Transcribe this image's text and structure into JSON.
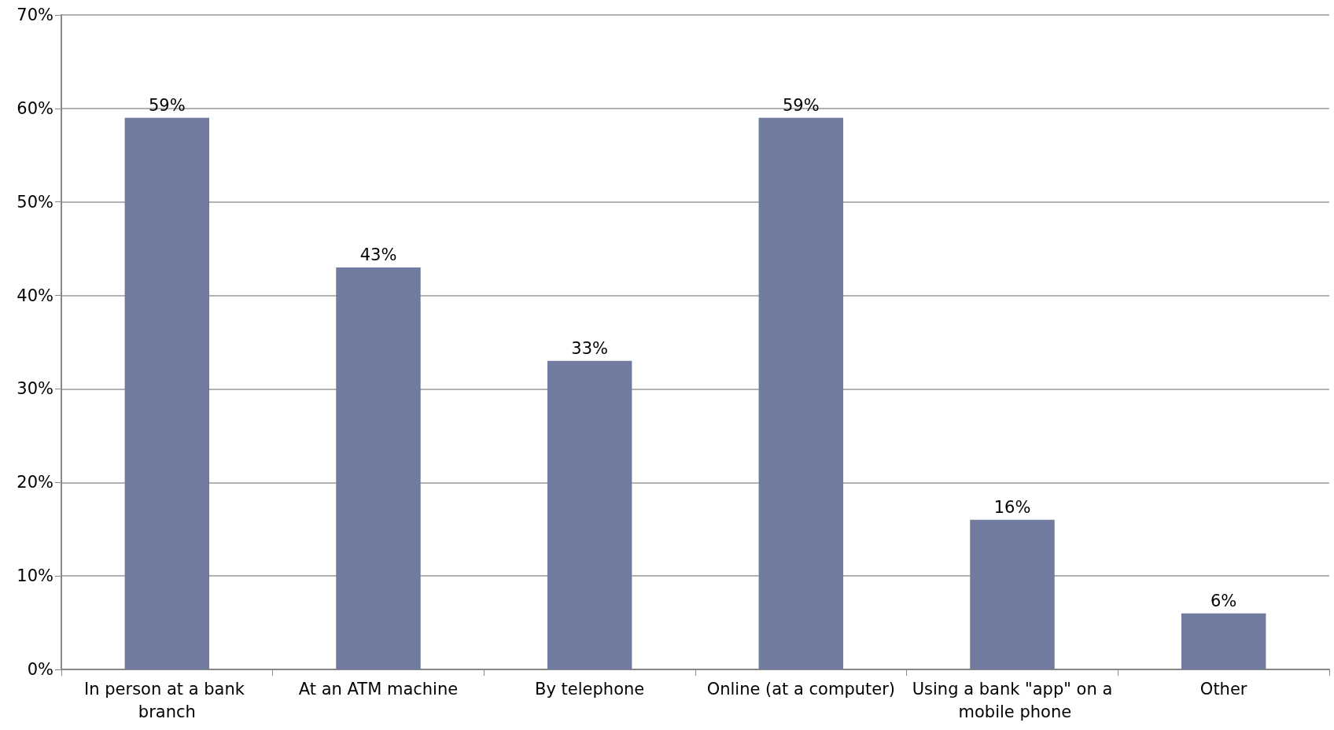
{
  "chart_data": {
    "type": "bar",
    "categories": [
      "In person at a bank branch",
      "At an ATM machine",
      "By telephone",
      "Online (at a computer)",
      "Using a bank \"app\" on a mobile phone",
      "Other"
    ],
    "values": [
      59,
      43,
      33,
      59,
      16,
      6
    ],
    "value_labels": [
      "59%",
      "43%",
      "33%",
      "59%",
      "16%",
      "6%"
    ],
    "color": "#717ba0",
    "ylim": [
      0,
      70
    ],
    "yticks": [
      {
        "value": 0,
        "label": "0%"
      },
      {
        "value": 10,
        "label": "10%"
      },
      {
        "value": 20,
        "label": "20%"
      },
      {
        "value": 30,
        "label": "30%"
      },
      {
        "value": 40,
        "label": "40%"
      },
      {
        "value": 50,
        "label": "50%"
      },
      {
        "value": 60,
        "label": "60%"
      },
      {
        "value": 70,
        "label": "70%"
      }
    ],
    "grid": "y"
  }
}
